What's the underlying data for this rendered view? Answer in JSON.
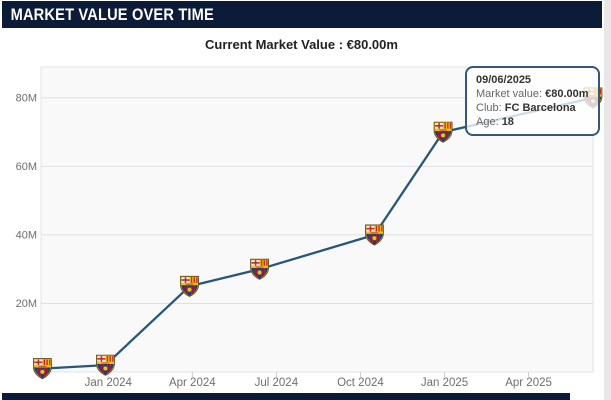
{
  "header": {
    "title": "MARKET VALUE OVER TIME"
  },
  "subheader": {
    "current_value_label": "Current Market Value : €80.00m"
  },
  "tooltip": {
    "date": "09/06/2025",
    "rows": [
      {
        "label": "Market value: ",
        "value": "€80.00m"
      },
      {
        "label": "Club: ",
        "value": "FC Barcelona"
      },
      {
        "label": "Age: ",
        "value": "18"
      }
    ]
  },
  "colors": {
    "header_bg": "#0c1c38",
    "line": "#26567d",
    "grid": "#e0e0e0",
    "plot_bg": "#f9f9f9",
    "plot_border": "#e3e3e3",
    "axis_text": "#6e6e6e",
    "tick_mark": "#c9c9c9",
    "tooltip_border": "#33577d"
  },
  "chart_data": {
    "type": "line",
    "title": "Market value over time",
    "x_unit": "months since Jan 2023",
    "xlim": [
      9.6,
      29.3
    ],
    "ylim": [
      0,
      89
    ],
    "grid": "horizontal-only",
    "legend": "none",
    "marker": "fc-barcelona-crest",
    "y_ticks": [
      {
        "label": "20M",
        "value": 20
      },
      {
        "label": "40M",
        "value": 40
      },
      {
        "label": "60M",
        "value": 60
      },
      {
        "label": "80M",
        "value": 80
      }
    ],
    "x_ticks": [
      {
        "label": "Jan 2024",
        "value": 12
      },
      {
        "label": "Apr 2024",
        "value": 15
      },
      {
        "label": "Jul 2024",
        "value": 18
      },
      {
        "label": "Oct 2024",
        "value": 21
      },
      {
        "label": "Jan 2025",
        "value": 24
      },
      {
        "label": "Apr 2025",
        "value": 27
      }
    ],
    "points": [
      {
        "date": "Oct 2023",
        "x": 9.65,
        "value_m": 1
      },
      {
        "date": "Dec 2023",
        "x": 11.9,
        "value_m": 2
      },
      {
        "date": "Mar 2024",
        "x": 14.9,
        "value_m": 25
      },
      {
        "date": "Jun 2024",
        "x": 17.4,
        "value_m": 30
      },
      {
        "date": "Oct 2024",
        "x": 21.5,
        "value_m": 40
      },
      {
        "date": "Jan 2025",
        "x": 23.95,
        "value_m": 70
      },
      {
        "date": "09/06/2025",
        "x": 29.3,
        "value_m": 80
      }
    ]
  }
}
